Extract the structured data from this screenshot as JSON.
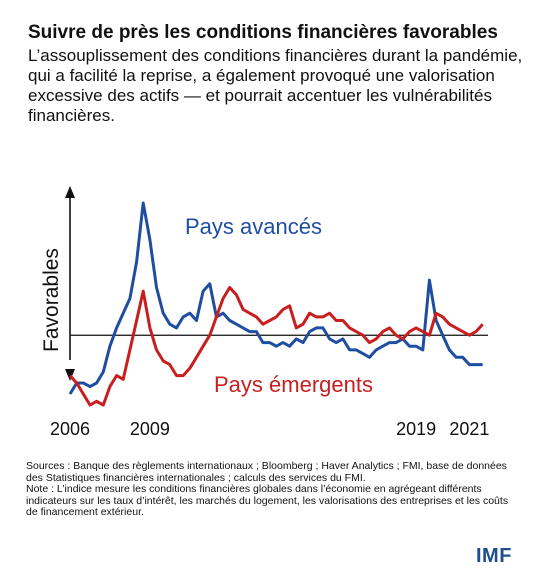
{
  "header": {
    "title": "Suivre de près les conditions financières favorables",
    "subtitle": "L’assouplissement des conditions financières durant la pandémie, qui a facilité la reprise, a également provoqué une valorisation excessive des actifs — et pourrait accentuer les vulnérabilités financières."
  },
  "chart_data": {
    "type": "line",
    "title": "Suivre de près les conditions financières favorables",
    "xlabel": "",
    "ylabel": "Favorables",
    "xlim": [
      2006,
      2021.7
    ],
    "ylim": [
      -1.9,
      3.9
    ],
    "x_ticks": [
      "2006",
      "2009",
      "2019",
      "2021"
    ],
    "x_tick_values": [
      2006,
      2009,
      2019,
      2021
    ],
    "grid": false,
    "baseline": 0,
    "series": [
      {
        "name": "Pays avancés",
        "color": "#1f4ea0",
        "x": [
          2006.0,
          2006.25,
          2006.5,
          2006.75,
          2007.0,
          2007.25,
          2007.5,
          2007.75,
          2008.0,
          2008.25,
          2008.5,
          2008.75,
          2009.0,
          2009.25,
          2009.5,
          2009.75,
          2010.0,
          2010.25,
          2010.5,
          2010.75,
          2011.0,
          2011.25,
          2011.5,
          2011.75,
          2012.0,
          2012.25,
          2012.5,
          2012.75,
          2013.0,
          2013.25,
          2013.5,
          2013.75,
          2014.0,
          2014.25,
          2014.5,
          2014.75,
          2015.0,
          2015.25,
          2015.5,
          2015.75,
          2016.0,
          2016.25,
          2016.5,
          2016.75,
          2017.0,
          2017.25,
          2017.5,
          2017.75,
          2018.0,
          2018.25,
          2018.5,
          2018.75,
          2019.0,
          2019.25,
          2019.5,
          2019.75,
          2020.0,
          2020.25,
          2020.5,
          2020.75,
          2021.0,
          2021.25,
          2021.5
        ],
        "values": [
          -1.6,
          -1.3,
          -1.3,
          -1.4,
          -1.3,
          -1.0,
          -0.3,
          0.2,
          0.6,
          1.0,
          2.0,
          3.6,
          2.6,
          1.3,
          0.6,
          0.3,
          0.2,
          0.5,
          0.6,
          0.4,
          1.2,
          1.4,
          0.5,
          0.6,
          0.4,
          0.3,
          0.2,
          0.1,
          0.1,
          -0.2,
          -0.2,
          -0.3,
          -0.2,
          -0.3,
          -0.1,
          -0.2,
          0.1,
          0.2,
          0.2,
          -0.1,
          -0.2,
          -0.1,
          -0.4,
          -0.4,
          -0.5,
          -0.6,
          -0.4,
          -0.3,
          -0.2,
          -0.2,
          -0.1,
          -0.3,
          -0.3,
          -0.4,
          1.5,
          0.4,
          0.0,
          -0.4,
          -0.6,
          -0.6,
          -0.8,
          -0.8,
          -0.8
        ]
      },
      {
        "name": "Pays émergents",
        "color": "#c81e1e",
        "x": [
          2006.0,
          2006.25,
          2006.5,
          2006.75,
          2007.0,
          2007.25,
          2007.5,
          2007.75,
          2008.0,
          2008.25,
          2008.5,
          2008.75,
          2009.0,
          2009.25,
          2009.5,
          2009.75,
          2010.0,
          2010.25,
          2010.5,
          2010.75,
          2011.0,
          2011.25,
          2011.5,
          2011.75,
          2012.0,
          2012.25,
          2012.5,
          2012.75,
          2013.0,
          2013.25,
          2013.5,
          2013.75,
          2014.0,
          2014.25,
          2014.5,
          2014.75,
          2015.0,
          2015.25,
          2015.5,
          2015.75,
          2016.0,
          2016.25,
          2016.5,
          2016.75,
          2017.0,
          2017.25,
          2017.5,
          2017.75,
          2018.0,
          2018.25,
          2018.5,
          2018.75,
          2019.0,
          2019.25,
          2019.5,
          2019.75,
          2020.0,
          2020.25,
          2020.5,
          2020.75,
          2021.0,
          2021.25,
          2021.5
        ],
        "values": [
          -1.1,
          -1.3,
          -1.6,
          -1.9,
          -1.8,
          -1.9,
          -1.4,
          -1.1,
          -1.2,
          -0.4,
          0.4,
          1.2,
          0.2,
          -0.4,
          -0.7,
          -0.8,
          -1.1,
          -1.1,
          -0.9,
          -0.6,
          -0.3,
          0.0,
          0.5,
          1.0,
          1.3,
          1.1,
          0.7,
          0.6,
          0.5,
          0.3,
          0.4,
          0.5,
          0.7,
          0.8,
          0.2,
          0.3,
          0.6,
          0.5,
          0.5,
          0.6,
          0.4,
          0.4,
          0.2,
          0.1,
          0.0,
          -0.2,
          -0.1,
          0.1,
          0.2,
          0.0,
          -0.1,
          0.1,
          0.2,
          0.1,
          0.0,
          0.6,
          0.5,
          0.3,
          0.2,
          0.1,
          0.0,
          0.1,
          0.3
        ]
      }
    ]
  },
  "labels": {
    "advanced": "Pays avancés",
    "emerging": "Pays émergents"
  },
  "footer": {
    "sources": "Sources : Banque des règlements internationaux ; Bloomberg ; Haver Analytics ; FMI, base de données des Statistiques financières internationales ; calculs des services du FMI.",
    "note": "Note : L’indice mesure les conditions financières globales dans l’économie en agrégeant différents indicateurs sur les taux d’intérêt, les marchés du logement, les valorisations des entreprises et les coûts de financement extérieur.",
    "logo": "IMF"
  }
}
